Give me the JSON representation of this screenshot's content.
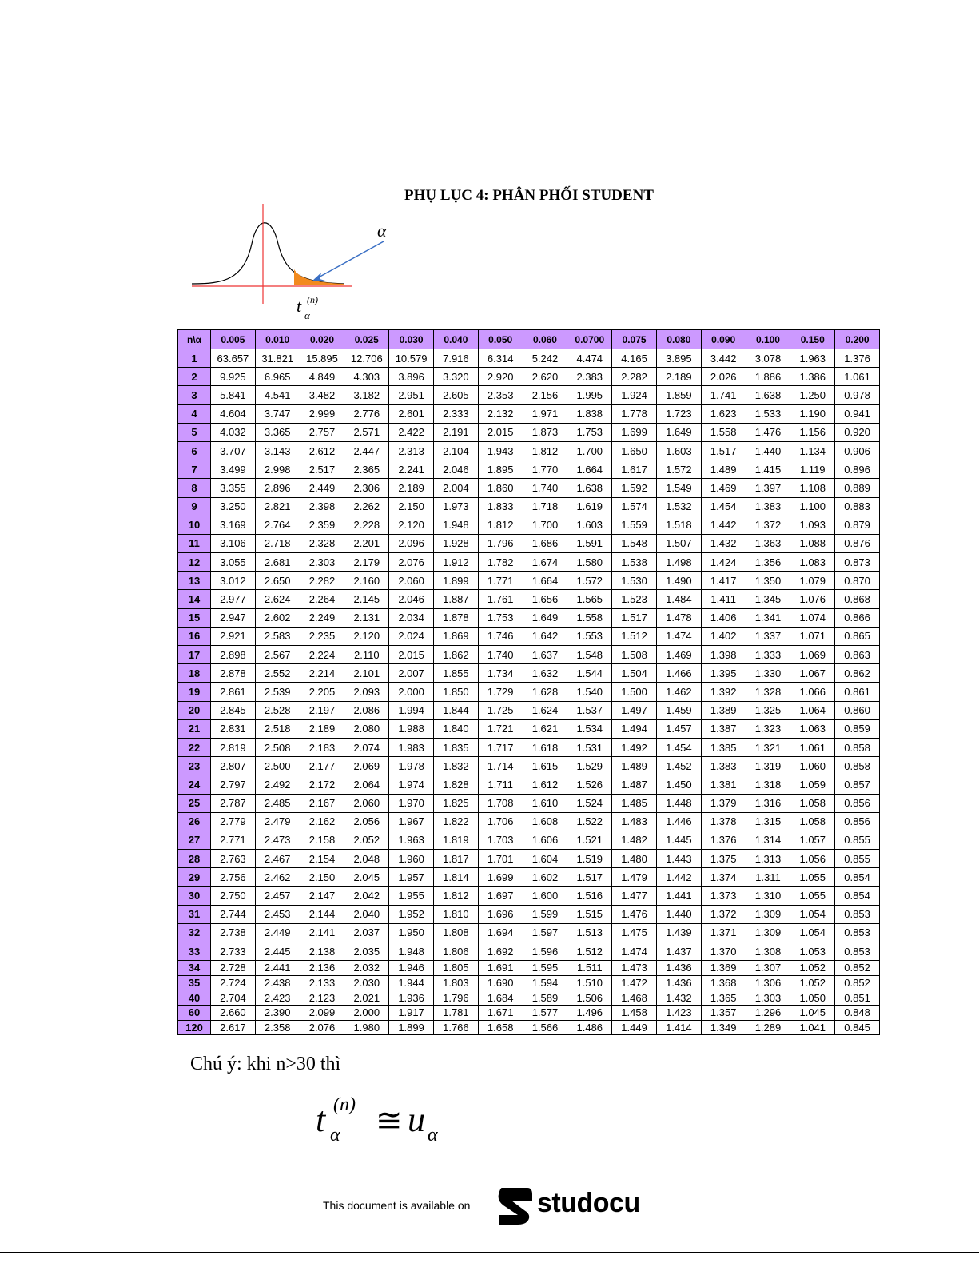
{
  "header": {
    "title": "PHỤ LỤC 4: PHÂN PHỐI STUDENT"
  },
  "diagram": {
    "alpha_label": "α",
    "t_base": "t",
    "t_sup": "(n)",
    "t_sub": "α"
  },
  "table": {
    "header": [
      "n\\α",
      "0.005",
      "0.010",
      "0.020",
      "0.025",
      "0.030",
      "0.040",
      "0.050",
      "0.060",
      "0.0700",
      "0.075",
      "0.080",
      "0.090",
      "0.100",
      "0.150",
      "0.200"
    ],
    "rows": [
      [
        "1",
        "63.657",
        "31.821",
        "15.895",
        "12.706",
        "10.579",
        "7.916",
        "6.314",
        "5.242",
        "4.474",
        "4.165",
        "3.895",
        "3.442",
        "3.078",
        "1.963",
        "1.376"
      ],
      [
        "2",
        "9.925",
        "6.965",
        "4.849",
        "4.303",
        "3.896",
        "3.320",
        "2.920",
        "2.620",
        "2.383",
        "2.282",
        "2.189",
        "2.026",
        "1.886",
        "1.386",
        "1.061"
      ],
      [
        "3",
        "5.841",
        "4.541",
        "3.482",
        "3.182",
        "2.951",
        "2.605",
        "2.353",
        "2.156",
        "1.995",
        "1.924",
        "1.859",
        "1.741",
        "1.638",
        "1.250",
        "0.978"
      ],
      [
        "4",
        "4.604",
        "3.747",
        "2.999",
        "2.776",
        "2.601",
        "2.333",
        "2.132",
        "1.971",
        "1.838",
        "1.778",
        "1.723",
        "1.623",
        "1.533",
        "1.190",
        "0.941"
      ],
      [
        "5",
        "4.032",
        "3.365",
        "2.757",
        "2.571",
        "2.422",
        "2.191",
        "2.015",
        "1.873",
        "1.753",
        "1.699",
        "1.649",
        "1.558",
        "1.476",
        "1.156",
        "0.920"
      ],
      [
        "6",
        "3.707",
        "3.143",
        "2.612",
        "2.447",
        "2.313",
        "2.104",
        "1.943",
        "1.812",
        "1.700",
        "1.650",
        "1.603",
        "1.517",
        "1.440",
        "1.134",
        "0.906"
      ],
      [
        "7",
        "3.499",
        "2.998",
        "2.517",
        "2.365",
        "2.241",
        "2.046",
        "1.895",
        "1.770",
        "1.664",
        "1.617",
        "1.572",
        "1.489",
        "1.415",
        "1.119",
        "0.896"
      ],
      [
        "8",
        "3.355",
        "2.896",
        "2.449",
        "2.306",
        "2.189",
        "2.004",
        "1.860",
        "1.740",
        "1.638",
        "1.592",
        "1.549",
        "1.469",
        "1.397",
        "1.108",
        "0.889"
      ],
      [
        "9",
        "3.250",
        "2.821",
        "2.398",
        "2.262",
        "2.150",
        "1.973",
        "1.833",
        "1.718",
        "1.619",
        "1.574",
        "1.532",
        "1.454",
        "1.383",
        "1.100",
        "0.883"
      ],
      [
        "10",
        "3.169",
        "2.764",
        "2.359",
        "2.228",
        "2.120",
        "1.948",
        "1.812",
        "1.700",
        "1.603",
        "1.559",
        "1.518",
        "1.442",
        "1.372",
        "1.093",
        "0.879"
      ],
      [
        "11",
        "3.106",
        "2.718",
        "2.328",
        "2.201",
        "2.096",
        "1.928",
        "1.796",
        "1.686",
        "1.591",
        "1.548",
        "1.507",
        "1.432",
        "1.363",
        "1.088",
        "0.876"
      ],
      [
        "12",
        "3.055",
        "2.681",
        "2.303",
        "2.179",
        "2.076",
        "1.912",
        "1.782",
        "1.674",
        "1.580",
        "1.538",
        "1.498",
        "1.424",
        "1.356",
        "1.083",
        "0.873"
      ],
      [
        "13",
        "3.012",
        "2.650",
        "2.282",
        "2.160",
        "2.060",
        "1.899",
        "1.771",
        "1.664",
        "1.572",
        "1.530",
        "1.490",
        "1.417",
        "1.350",
        "1.079",
        "0.870"
      ],
      [
        "14",
        "2.977",
        "2.624",
        "2.264",
        "2.145",
        "2.046",
        "1.887",
        "1.761",
        "1.656",
        "1.565",
        "1.523",
        "1.484",
        "1.411",
        "1.345",
        "1.076",
        "0.868"
      ],
      [
        "15",
        "2.947",
        "2.602",
        "2.249",
        "2.131",
        "2.034",
        "1.878",
        "1.753",
        "1.649",
        "1.558",
        "1.517",
        "1.478",
        "1.406",
        "1.341",
        "1.074",
        "0.866"
      ],
      [
        "16",
        "2.921",
        "2.583",
        "2.235",
        "2.120",
        "2.024",
        "1.869",
        "1.746",
        "1.642",
        "1.553",
        "1.512",
        "1.474",
        "1.402",
        "1.337",
        "1.071",
        "0.865"
      ],
      [
        "17",
        "2.898",
        "2.567",
        "2.224",
        "2.110",
        "2.015",
        "1.862",
        "1.740",
        "1.637",
        "1.548",
        "1.508",
        "1.469",
        "1.398",
        "1.333",
        "1.069",
        "0.863"
      ],
      [
        "18",
        "2.878",
        "2.552",
        "2.214",
        "2.101",
        "2.007",
        "1.855",
        "1.734",
        "1.632",
        "1.544",
        "1.504",
        "1.466",
        "1.395",
        "1.330",
        "1.067",
        "0.862"
      ],
      [
        "19",
        "2.861",
        "2.539",
        "2.205",
        "2.093",
        "2.000",
        "1.850",
        "1.729",
        "1.628",
        "1.540",
        "1.500",
        "1.462",
        "1.392",
        "1.328",
        "1.066",
        "0.861"
      ],
      [
        "20",
        "2.845",
        "2.528",
        "2.197",
        "2.086",
        "1.994",
        "1.844",
        "1.725",
        "1.624",
        "1.537",
        "1.497",
        "1.459",
        "1.389",
        "1.325",
        "1.064",
        "0.860"
      ],
      [
        "21",
        "2.831",
        "2.518",
        "2.189",
        "2.080",
        "1.988",
        "1.840",
        "1.721",
        "1.621",
        "1.534",
        "1.494",
        "1.457",
        "1.387",
        "1.323",
        "1.063",
        "0.859"
      ],
      [
        "22",
        "2.819",
        "2.508",
        "2.183",
        "2.074",
        "1.983",
        "1.835",
        "1.717",
        "1.618",
        "1.531",
        "1.492",
        "1.454",
        "1.385",
        "1.321",
        "1.061",
        "0.858"
      ],
      [
        "23",
        "2.807",
        "2.500",
        "2.177",
        "2.069",
        "1.978",
        "1.832",
        "1.714",
        "1.615",
        "1.529",
        "1.489",
        "1.452",
        "1.383",
        "1.319",
        "1.060",
        "0.858"
      ],
      [
        "24",
        "2.797",
        "2.492",
        "2.172",
        "2.064",
        "1.974",
        "1.828",
        "1.711",
        "1.612",
        "1.526",
        "1.487",
        "1.450",
        "1.381",
        "1.318",
        "1.059",
        "0.857"
      ],
      [
        "25",
        "2.787",
        "2.485",
        "2.167",
        "2.060",
        "1.970",
        "1.825",
        "1.708",
        "1.610",
        "1.524",
        "1.485",
        "1.448",
        "1.379",
        "1.316",
        "1.058",
        "0.856"
      ],
      [
        "26",
        "2.779",
        "2.479",
        "2.162",
        "2.056",
        "1.967",
        "1.822",
        "1.706",
        "1.608",
        "1.522",
        "1.483",
        "1.446",
        "1.378",
        "1.315",
        "1.058",
        "0.856"
      ],
      [
        "27",
        "2.771",
        "2.473",
        "2.158",
        "2.052",
        "1.963",
        "1.819",
        "1.703",
        "1.606",
        "1.521",
        "1.482",
        "1.445",
        "1.376",
        "1.314",
        "1.057",
        "0.855"
      ],
      [
        "28",
        "2.763",
        "2.467",
        "2.154",
        "2.048",
        "1.960",
        "1.817",
        "1.701",
        "1.604",
        "1.519",
        "1.480",
        "1.443",
        "1.375",
        "1.313",
        "1.056",
        "0.855"
      ],
      [
        "29",
        "2.756",
        "2.462",
        "2.150",
        "2.045",
        "1.957",
        "1.814",
        "1.699",
        "1.602",
        "1.517",
        "1.479",
        "1.442",
        "1.374",
        "1.311",
        "1.055",
        "0.854"
      ],
      [
        "30",
        "2.750",
        "2.457",
        "2.147",
        "2.042",
        "1.955",
        "1.812",
        "1.697",
        "1.600",
        "1.516",
        "1.477",
        "1.441",
        "1.373",
        "1.310",
        "1.055",
        "0.854"
      ],
      [
        "31",
        "2.744",
        "2.453",
        "2.144",
        "2.040",
        "1.952",
        "1.810",
        "1.696",
        "1.599",
        "1.515",
        "1.476",
        "1.440",
        "1.372",
        "1.309",
        "1.054",
        "0.853"
      ],
      [
        "32",
        "2.738",
        "2.449",
        "2.141",
        "2.037",
        "1.950",
        "1.808",
        "1.694",
        "1.597",
        "1.513",
        "1.475",
        "1.439",
        "1.371",
        "1.309",
        "1.054",
        "0.853"
      ],
      [
        "33",
        "2.733",
        "2.445",
        "2.138",
        "2.035",
        "1.948",
        "1.806",
        "1.692",
        "1.596",
        "1.512",
        "1.474",
        "1.437",
        "1.370",
        "1.308",
        "1.053",
        "0.853"
      ],
      [
        "34",
        "2.728",
        "2.441",
        "2.136",
        "2.032",
        "1.946",
        "1.805",
        "1.691",
        "1.595",
        "1.511",
        "1.473",
        "1.436",
        "1.369",
        "1.307",
        "1.052",
        "0.852"
      ],
      [
        "35",
        "2.724",
        "2.438",
        "2.133",
        "2.030",
        "1.944",
        "1.803",
        "1.690",
        "1.594",
        "1.510",
        "1.472",
        "1.436",
        "1.368",
        "1.306",
        "1.052",
        "0.852"
      ],
      [
        "40",
        "2.704",
        "2.423",
        "2.123",
        "2.021",
        "1.936",
        "1.796",
        "1.684",
        "1.589",
        "1.506",
        "1.468",
        "1.432",
        "1.365",
        "1.303",
        "1.050",
        "0.851"
      ],
      [
        "60",
        "2.660",
        "2.390",
        "2.099",
        "2.000",
        "1.917",
        "1.781",
        "1.671",
        "1.577",
        "1.496",
        "1.458",
        "1.423",
        "1.357",
        "1.296",
        "1.045",
        "0.848"
      ],
      [
        "120",
        "2.617",
        "2.358",
        "2.076",
        "1.980",
        "1.899",
        "1.766",
        "1.658",
        "1.566",
        "1.486",
        "1.449",
        "1.414",
        "1.349",
        "1.289",
        "1.041",
        "0.845"
      ]
    ]
  },
  "note": {
    "text": "Chú ý: khi n>30 thì"
  },
  "formula": {
    "base": "t",
    "sup": "(n)",
    "sub": "α",
    "op": "≅",
    "rhs": "u",
    "rhs_sub": "α"
  },
  "footer": {
    "text": "This document is available on",
    "brand": "studocu"
  }
}
